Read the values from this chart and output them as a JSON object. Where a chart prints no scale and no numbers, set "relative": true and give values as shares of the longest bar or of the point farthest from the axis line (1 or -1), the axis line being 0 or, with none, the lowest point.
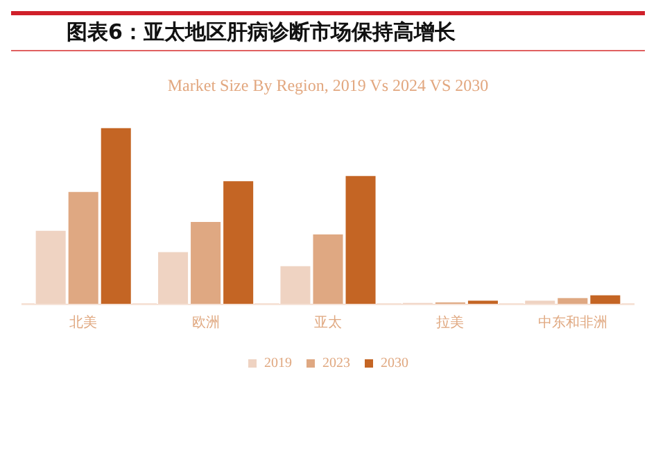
{
  "chart_data": {
    "type": "bar",
    "title": "图表6：亚太地区肝病诊断市场保持高增长",
    "subtitle": "Market Size By Region, 2019 Vs 2024 VS 2030",
    "categories": [
      "北美",
      "欧洲",
      "亚太",
      "拉美",
      "中东和非洲"
    ],
    "relative": true,
    "series": [
      {
        "name": "2019",
        "color": "#efd3c2",
        "values": [
          0.42,
          0.3,
          0.22,
          0.01,
          0.025
        ]
      },
      {
        "name": "2023",
        "color": "#dfa882",
        "values": [
          0.64,
          0.47,
          0.4,
          0.015,
          0.04
        ]
      },
      {
        "name": "2030",
        "color": "#c46524",
        "values": [
          1,
          0.7,
          0.73,
          0.025,
          0.056
        ]
      }
    ],
    "legend": "bottom",
    "grid": false
  }
}
